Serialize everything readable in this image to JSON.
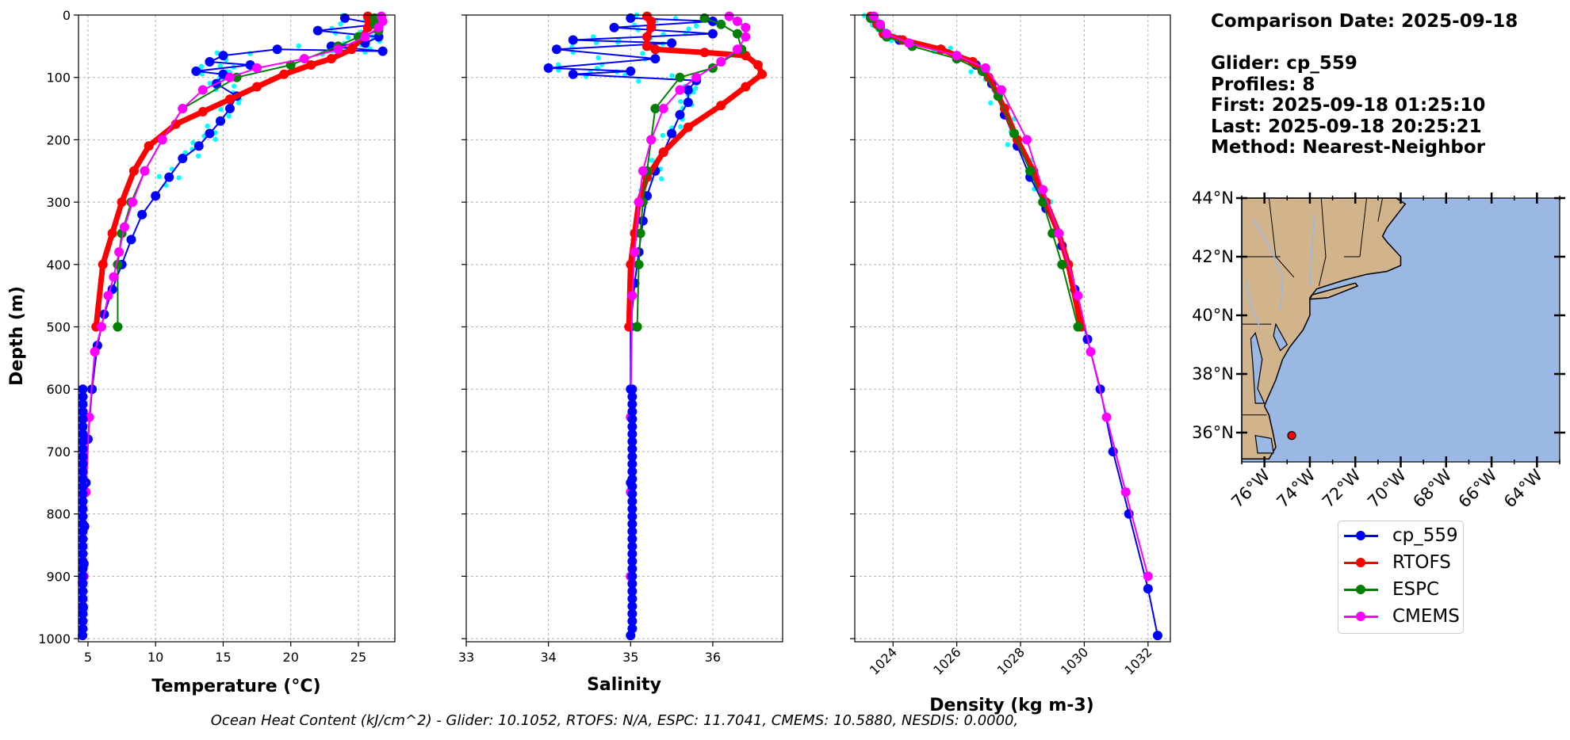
{
  "info": {
    "comparison_date": "Comparison Date: 2025-09-18",
    "glider": "Glider: cp_559",
    "profiles": "Profiles: 8",
    "first": "First: 2025-09-18 01:25:10",
    "last": "Last: 2025-09-18 20:25:21",
    "method": "Method: Nearest-Neighbor"
  },
  "footer": "Ocean Heat Content (kJ/cm^2) - Glider: 10.1052,  RTOFS: N/A,  ESPC: 11.7041,  CMEMS: 10.5880,  NESDIS: 0.0000,",
  "colors": {
    "glider": "#0000ff",
    "glider_raw": "#00ffff",
    "rtofs": "#ff0000",
    "espc": "#008000",
    "cmems": "#ff00ff",
    "land": "#d2b48c",
    "ocean": "#9ab8e3"
  },
  "legend": [
    {
      "label": "cp_559",
      "color": "#0000ff"
    },
    {
      "label": "RTOFS",
      "color": "#ff0000"
    },
    {
      "label": "ESPC",
      "color": "#008000"
    },
    {
      "label": "CMEMS",
      "color": "#ff00ff"
    }
  ],
  "chart_data": [
    {
      "type": "line",
      "title": "",
      "xlabel": "Temperature (°C)",
      "ylabel": "Depth (m)",
      "xlim": [
        4.3,
        27.7
      ],
      "ylim": [
        1005,
        0
      ],
      "xticks": [
        5,
        10,
        15,
        20,
        25
      ],
      "yticks": [
        0,
        100,
        200,
        300,
        400,
        500,
        600,
        700,
        800,
        900,
        1000
      ],
      "grid": true,
      "series": [
        {
          "name": "cp_559",
          "color": "#0000ff",
          "x": [
            24,
            26.5,
            22,
            26.5,
            25.5,
            23,
            26.8,
            19,
            15,
            14,
            17,
            13,
            15,
            14.5,
            16,
            15.5,
            14.8,
            14,
            13.2,
            12,
            11,
            10,
            9,
            8.2,
            7.5,
            6.8,
            6.2,
            5.7,
            5.3,
            5,
            4.85,
            4.75,
            4.7,
            4.65,
            4.6
          ],
          "y": [
            5,
            15,
            25,
            35,
            45,
            50,
            58,
            55,
            65,
            75,
            80,
            90,
            95,
            110,
            130,
            150,
            170,
            190,
            210,
            230,
            260,
            290,
            320,
            360,
            400,
            440,
            480,
            530,
            600,
            680,
            750,
            820,
            880,
            950,
            995
          ]
        },
        {
          "name": "RTOFS",
          "color": "#ff0000",
          "x": [
            25.7,
            25.8,
            25.7,
            25.3,
            24.5,
            23,
            21.5,
            19.5,
            17.5,
            15.5,
            13.5,
            11.5,
            9.5,
            8.4,
            7.5,
            6.8,
            6.1,
            5.6
          ],
          "y": [
            2,
            10,
            20,
            35,
            55,
            70,
            80,
            95,
            115,
            135,
            155,
            175,
            210,
            250,
            300,
            350,
            400,
            500
          ]
        },
        {
          "name": "ESPC",
          "color": "#008000",
          "x": [
            26.2,
            26.2,
            26.5,
            25,
            23.5,
            20,
            16,
            12,
            10.5,
            9.2,
            8.2,
            7.5,
            7.2,
            7.2
          ],
          "y": [
            5,
            15,
            25,
            35,
            50,
            80,
            100,
            150,
            200,
            250,
            300,
            350,
            400,
            500
          ]
        },
        {
          "name": "CMEMS",
          "color": "#ff00ff",
          "x": [
            26.7,
            26.8,
            26.5,
            25.5,
            23.5,
            21,
            17.5,
            15.5,
            13.5,
            12,
            10.5,
            9.2,
            8.3,
            7.7,
            7.3,
            6.9,
            6.5,
            6,
            5.5,
            5.1,
            4.85,
            4.7,
            4.6
          ],
          "y": [
            2,
            10,
            20,
            35,
            55,
            70,
            85,
            100,
            120,
            150,
            200,
            250,
            300,
            340,
            380,
            420,
            450,
            500,
            540,
            645,
            765,
            900,
            910
          ]
        }
      ]
    },
    {
      "type": "line",
      "title": "",
      "xlabel": "Salinity",
      "ylabel": "",
      "xlim": [
        33,
        36.85
      ],
      "ylim": [
        1005,
        0
      ],
      "xticks": [
        33,
        34,
        35,
        36
      ],
      "yticks": [
        0,
        100,
        200,
        300,
        400,
        500,
        600,
        700,
        800,
        900,
        1000
      ],
      "grid": true,
      "series": [
        {
          "name": "cp_559",
          "color": "#0000ff",
          "x": [
            35,
            36,
            34.8,
            36,
            34.3,
            35.5,
            34.1,
            35.3,
            34,
            35,
            34.3,
            35.8,
            35.7,
            35.7,
            35.6,
            35.5,
            35.4,
            35.3,
            35.2,
            35.15,
            35.1,
            35.05,
            35,
            35,
            35,
            35,
            35
          ],
          "y": [
            5,
            10,
            20,
            30,
            40,
            45,
            55,
            70,
            85,
            90,
            95,
            105,
            120,
            140,
            160,
            190,
            220,
            250,
            290,
            330,
            380,
            430,
            500,
            600,
            750,
            900,
            995
          ]
        },
        {
          "name": "RTOFS",
          "color": "#ff0000",
          "x": [
            35.2,
            35.25,
            35.25,
            35.2,
            35.2,
            35.3,
            35.9,
            36.4,
            36.55,
            36.6,
            36.4,
            36.1,
            35.7,
            35.4,
            35.2,
            35.1,
            35.05,
            35.0,
            34.98
          ],
          "y": [
            2,
            10,
            20,
            35,
            50,
            55,
            60,
            65,
            80,
            95,
            115,
            145,
            180,
            220,
            260,
            300,
            350,
            400,
            500
          ]
        },
        {
          "name": "ESPC",
          "color": "#008000",
          "x": [
            35.9,
            36.1,
            36.3,
            36.35,
            36.0,
            35.6,
            35.3,
            35.25,
            35.2,
            35.15,
            35.12,
            35.1,
            35.08,
            35.08
          ],
          "y": [
            5,
            15,
            30,
            55,
            85,
            100,
            150,
            200,
            250,
            300,
            350,
            400,
            500,
            500
          ]
        },
        {
          "name": "CMEMS",
          "color": "#ff00ff",
          "x": [
            36.2,
            36.3,
            36.4,
            36.4,
            36.3,
            36.1,
            35.8,
            35.6,
            35.4,
            35.25,
            35.15,
            35.1,
            35.05,
            35.02,
            35.0,
            35.0,
            35.0
          ],
          "y": [
            2,
            10,
            20,
            35,
            55,
            75,
            100,
            120,
            150,
            200,
            250,
            300,
            380,
            450,
            645,
            765,
            900
          ]
        }
      ]
    },
    {
      "type": "line",
      "title": "",
      "xlabel": "Density (kg m-3)",
      "ylabel": "",
      "xlim": [
        1022.8,
        1032.7
      ],
      "ylim": [
        1005,
        0
      ],
      "xticks": [
        1024,
        1026,
        1028,
        1030,
        1032
      ],
      "yticks": [
        0,
        100,
        200,
        300,
        400,
        500,
        600,
        700,
        800,
        900,
        1000
      ],
      "grid": true,
      "series": [
        {
          "name": "cp_559",
          "color": "#0000ff",
          "x": [
            1023.3,
            1023.5,
            1023.7,
            1024.2,
            1025.5,
            1026.6,
            1027.1,
            1027.5,
            1027.9,
            1028.3,
            1028.8,
            1029.3,
            1029.7,
            1030.1,
            1030.5,
            1030.9,
            1031.4,
            1032.0,
            1032.3
          ],
          "y": [
            5,
            15,
            30,
            40,
            55,
            80,
            110,
            160,
            210,
            260,
            310,
            370,
            440,
            520,
            600,
            700,
            800,
            920,
            995
          ]
        },
        {
          "name": "RTOFS",
          "color": "#ff0000",
          "x": [
            1023.3,
            1023.5,
            1023.7,
            1024.3,
            1025.5,
            1026.5,
            1027.0,
            1027.5,
            1027.9,
            1028.4,
            1028.8,
            1029.2,
            1029.5,
            1029.9
          ],
          "y": [
            2,
            15,
            30,
            40,
            55,
            75,
            100,
            150,
            200,
            250,
            300,
            350,
            400,
            500
          ]
        },
        {
          "name": "ESPC",
          "color": "#008000",
          "x": [
            1023.3,
            1023.6,
            1023.8,
            1024.6,
            1026.0,
            1026.8,
            1027.3,
            1027.8,
            1028.3,
            1028.7,
            1029.0,
            1029.3,
            1029.8
          ],
          "y": [
            5,
            20,
            35,
            50,
            70,
            90,
            130,
            190,
            250,
            300,
            350,
            400,
            500
          ]
        },
        {
          "name": "CMEMS",
          "color": "#ff00ff",
          "x": [
            1023.4,
            1023.6,
            1023.8,
            1024.5,
            1026.0,
            1026.9,
            1027.4,
            1028.2,
            1028.7,
            1029.2,
            1029.8,
            1030.2,
            1030.7,
            1031.3,
            1032.0
          ],
          "y": [
            2,
            15,
            30,
            45,
            65,
            85,
            120,
            200,
            280,
            350,
            450,
            540,
            645,
            765,
            900
          ]
        }
      ]
    },
    {
      "type": "map",
      "yticks": [
        "36°N",
        "38°N",
        "40°N",
        "42°N",
        "44°N"
      ],
      "ytick_values": [
        36,
        38,
        40,
        42,
        44
      ],
      "xticks": [
        "76°W",
        "74°W",
        "72°W",
        "70°W",
        "68°W",
        "66°W",
        "64°W"
      ],
      "xtick_values": [
        -76,
        -74,
        -72,
        -70,
        -68,
        -66,
        -64
      ],
      "lon_range": [
        -77,
        -63
      ],
      "lat_range": [
        35,
        44
      ],
      "glider_position": {
        "lon": -74.8,
        "lat": 35.9
      }
    }
  ]
}
